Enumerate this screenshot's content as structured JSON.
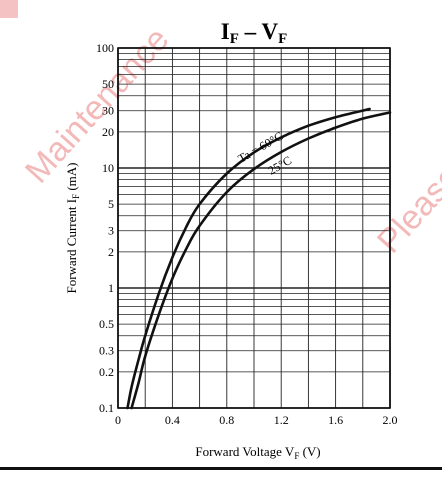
{
  "watermark": {
    "left_text": "Maintenance",
    "right_text": "Please",
    "color": "#f3b9b9"
  },
  "chart_data": {
    "type": "line",
    "title_main": "I",
    "title_sub1": "F",
    "title_dash": " – V",
    "title_sub2": "F",
    "xlabel": "Forward Voltage V",
    "xlabel_sub": "F",
    "xlabel_unit": "(V)",
    "ylabel": "Forward Current I",
    "ylabel_sub": "F",
    "ylabel_unit": "(mA)",
    "xlim": [
      0,
      2.0
    ],
    "ylim": [
      0.1,
      100
    ],
    "y_scale": "log",
    "grid": true,
    "x_ticks": [
      0,
      0.4,
      0.8,
      1.2,
      1.6,
      2.0
    ],
    "x_tick_labels": [
      "0",
      "0.4",
      "0.8",
      "1.2",
      "1.6",
      "2.0"
    ],
    "y_ticks": [
      0.1,
      0.2,
      0.3,
      0.5,
      1,
      2,
      3,
      5,
      10,
      20,
      30,
      50,
      100
    ],
    "y_tick_labels": [
      "0.1",
      "0.2",
      "0.3",
      "0.5",
      "1",
      "2",
      "3",
      "5",
      "10",
      "20",
      "30",
      "50",
      "100"
    ],
    "series": [
      {
        "name": "Ta = 60°C",
        "x": [
          0.07,
          0.1,
          0.15,
          0.2,
          0.3,
          0.4,
          0.5,
          0.6,
          0.8,
          1.0,
          1.2,
          1.4,
          1.6,
          1.85
        ],
        "y": [
          0.1,
          0.15,
          0.25,
          0.4,
          0.9,
          1.8,
          3.2,
          5.0,
          9.0,
          13.5,
          18.0,
          22.5,
          26.5,
          31.0
        ]
      },
      {
        "name": "25°C",
        "x": [
          0.1,
          0.15,
          0.2,
          0.3,
          0.4,
          0.5,
          0.6,
          0.8,
          1.0,
          1.2,
          1.4,
          1.6,
          1.8,
          2.0
        ],
        "y": [
          0.1,
          0.16,
          0.27,
          0.6,
          1.2,
          2.1,
          3.3,
          6.3,
          9.8,
          13.6,
          17.6,
          21.7,
          25.8,
          29.0
        ]
      }
    ],
    "annotations": [
      {
        "text": "Ta = 60°C"
      },
      {
        "text": "25°C"
      }
    ]
  }
}
